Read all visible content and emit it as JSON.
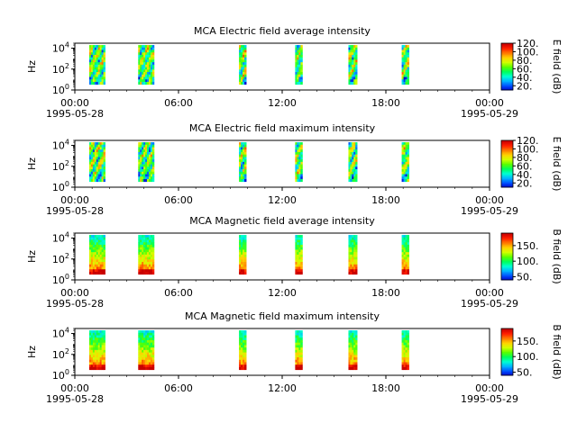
{
  "chart_data": [
    {
      "type": "heatmap",
      "title": "MCA  Electric field average intensity",
      "ylabel": "Hz",
      "x_ticks": [
        "00:00",
        "06:00",
        "12:00",
        "18:00",
        "00:00"
      ],
      "x_tick_dates": [
        "1995-05-28",
        "",
        "",
        "",
        "1995-05-29"
      ],
      "y_scale": "log",
      "y_ticks": [
        "10^0",
        "10^2",
        "10^4"
      ],
      "colorbar": {
        "label": "E field (dB)",
        "ticks": [
          "20.",
          "40.",
          "60.",
          "80.",
          "100.",
          "120."
        ],
        "range": [
          10,
          120
        ]
      },
      "x_range": [
        "1995-05-28 00:00",
        "1995-05-29 00:00"
      ],
      "y_range": [
        1,
        30000
      ],
      "data_intervals": [
        {
          "start": "00:50",
          "end": "01:45"
        },
        {
          "start": "03:40",
          "end": "04:35"
        },
        {
          "start": "09:30",
          "end": "09:55"
        },
        {
          "start": "12:45",
          "end": "13:10"
        },
        {
          "start": "15:50",
          "end": "16:20"
        },
        {
          "start": "18:55",
          "end": "19:20"
        }
      ],
      "grid": false
    },
    {
      "type": "heatmap",
      "title": "MCA  Electric field maximum intensity",
      "ylabel": "Hz",
      "x_ticks": [
        "00:00",
        "06:00",
        "12:00",
        "18:00",
        "00:00"
      ],
      "x_tick_dates": [
        "1995-05-28",
        "",
        "",
        "",
        "1995-05-29"
      ],
      "y_scale": "log",
      "y_ticks": [
        "10^0",
        "10^2",
        "10^4"
      ],
      "colorbar": {
        "label": "E field (dB)",
        "ticks": [
          "20.",
          "40.",
          "60.",
          "80.",
          "100.",
          "120."
        ],
        "range": [
          10,
          120
        ]
      },
      "x_range": [
        "1995-05-28 00:00",
        "1995-05-29 00:00"
      ],
      "y_range": [
        1,
        30000
      ],
      "data_intervals": [
        {
          "start": "00:50",
          "end": "01:45"
        },
        {
          "start": "03:40",
          "end": "04:35"
        },
        {
          "start": "09:30",
          "end": "09:55"
        },
        {
          "start": "12:45",
          "end": "13:10"
        },
        {
          "start": "15:50",
          "end": "16:20"
        },
        {
          "start": "18:55",
          "end": "19:20"
        }
      ],
      "grid": false
    },
    {
      "type": "heatmap",
      "title": "MCA  Magnetic field average intensity",
      "ylabel": "Hz",
      "x_ticks": [
        "00:00",
        "06:00",
        "12:00",
        "18:00",
        "00:00"
      ],
      "x_tick_dates": [
        "1995-05-28",
        "",
        "",
        "",
        "1995-05-29"
      ],
      "y_scale": "log",
      "y_ticks": [
        "10^0",
        "10^2",
        "10^4"
      ],
      "colorbar": {
        "label": "B field (dB)",
        "ticks": [
          "50.",
          "100.",
          "150."
        ],
        "range": [
          40,
          190
        ]
      },
      "x_range": [
        "1995-05-28 00:00",
        "1995-05-29 00:00"
      ],
      "y_range": [
        1,
        30000
      ],
      "data_intervals": [
        {
          "start": "00:50",
          "end": "01:45"
        },
        {
          "start": "03:40",
          "end": "04:35"
        },
        {
          "start": "09:30",
          "end": "09:55"
        },
        {
          "start": "12:45",
          "end": "13:10"
        },
        {
          "start": "15:50",
          "end": "16:20"
        },
        {
          "start": "18:55",
          "end": "19:20"
        }
      ],
      "grid": false
    },
    {
      "type": "heatmap",
      "title": "MCA  Magnetic field maximum intensity",
      "ylabel": "Hz",
      "x_ticks": [
        "00:00",
        "06:00",
        "12:00",
        "18:00",
        "00:00"
      ],
      "x_tick_dates": [
        "1995-05-28",
        "",
        "",
        "",
        "1995-05-29"
      ],
      "y_scale": "log",
      "y_ticks": [
        "10^0",
        "10^2",
        "10^4"
      ],
      "colorbar": {
        "label": "B field (dB)",
        "ticks": [
          "50.",
          "100.",
          "150."
        ],
        "range": [
          40,
          190
        ]
      },
      "x_range": [
        "1995-05-28 00:00",
        "1995-05-29 00:00"
      ],
      "y_range": [
        1,
        30000
      ],
      "data_intervals": [
        {
          "start": "00:50",
          "end": "01:45"
        },
        {
          "start": "03:40",
          "end": "04:35"
        },
        {
          "start": "09:30",
          "end": "09:55"
        },
        {
          "start": "12:45",
          "end": "13:10"
        },
        {
          "start": "15:50",
          "end": "16:20"
        },
        {
          "start": "18:55",
          "end": "19:20"
        }
      ],
      "grid": false
    }
  ],
  "colormap": [
    "#0000c8",
    "#0050ff",
    "#00b4ff",
    "#00ffd2",
    "#00ff5a",
    "#5aff00",
    "#d2ff00",
    "#ffd200",
    "#ff7800",
    "#ff1e00",
    "#c80000"
  ]
}
